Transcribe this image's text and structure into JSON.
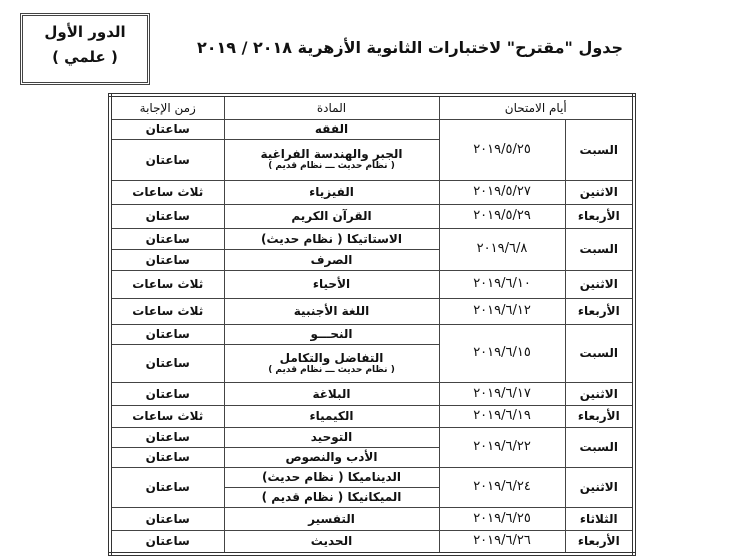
{
  "round_box": {
    "line1": "الدور الأول",
    "line2": "( علمي )"
  },
  "title": "جدول \"مقترح\" لاختبارات الثانوية الأزهرية ٢٠١٨ / ٢٠١٩",
  "table": {
    "headers": {
      "days": "أيام الامتحان",
      "subject": "المادة",
      "duration": "زمن الإجابة"
    },
    "rows": [
      {
        "day": "السبت",
        "date": "٢٠١٩/٥/٢٥",
        "sessions": [
          {
            "subject": "الفقه",
            "duration": "ساعتان"
          },
          {
            "subject": "الجبر والهندسة الفراغية",
            "note": "( نظام حديث ـــ نظام قديم )",
            "duration": "ساعتان"
          }
        ]
      },
      {
        "day": "الاثنين",
        "date": "٢٠١٩/٥/٢٧",
        "sessions": [
          {
            "subject": "الفيزياء",
            "duration": "ثلاث ساعات"
          }
        ]
      },
      {
        "day": "الأربعاء",
        "date": "٢٠١٩/٥/٢٩",
        "sessions": [
          {
            "subject": "القرآن الكريم",
            "duration": "ساعتان"
          }
        ]
      },
      {
        "day": "السبت",
        "date": "٢٠١٩/٦/٨",
        "sessions": [
          {
            "subject": "الاستاتيكا ( نظام حديث)",
            "duration": "ساعتان"
          },
          {
            "subject": "الصرف",
            "duration": "ساعتان"
          }
        ]
      },
      {
        "day": "الاثنين",
        "date": "٢٠١٩/٦/١٠",
        "sessions": [
          {
            "subject": "الأحياء",
            "duration": "ثلاث ساعات"
          }
        ]
      },
      {
        "day": "الأربعاء",
        "date": "٢٠١٩/٦/١٢",
        "sessions": [
          {
            "subject": "اللغة الأجنبية",
            "duration": "ثلاث ساعات"
          }
        ]
      },
      {
        "day": "السبت",
        "date": "٢٠١٩/٦/١٥",
        "sessions": [
          {
            "subject": "النحـــو",
            "duration": "ساعتان"
          },
          {
            "subject": "التفاضل والتكامل",
            "note": "( نظام حديث ـــ نظام قديم )",
            "duration": "ساعتان"
          }
        ]
      },
      {
        "day": "الاثنين",
        "date": "٢٠١٩/٦/١٧",
        "sessions": [
          {
            "subject": "البلاغة",
            "duration": "ساعتان"
          }
        ]
      },
      {
        "day": "الأربعاء",
        "date": "٢٠١٩/٦/١٩",
        "sessions": [
          {
            "subject": "الكيمياء",
            "duration": "ثلاث ساعات"
          }
        ]
      },
      {
        "day": "السبت",
        "date": "٢٠١٩/٦/٢٢",
        "sessions": [
          {
            "subject": "التوحيد",
            "duration": "ساعتان"
          },
          {
            "subject": "الأدب والنصوص",
            "duration": "ساعتان"
          }
        ]
      },
      {
        "day": "الاثنين",
        "date": "٢٠١٩/٦/٢٤",
        "shared_duration": "ساعتان",
        "sessions": [
          {
            "subject": "الديناميكا ( نظام حديث)"
          },
          {
            "subject": "الميكانيكا ( نظام قديم )"
          }
        ]
      },
      {
        "day": "الثلاثاء",
        "date": "٢٠١٩/٦/٢٥",
        "sessions": [
          {
            "subject": "التفسير",
            "duration": "ساعتان"
          }
        ]
      },
      {
        "day": "الأربعاء",
        "date": "٢٠١٩/٦/٢٦",
        "sessions": [
          {
            "subject": "الحديث",
            "duration": "ساعتان"
          }
        ]
      }
    ]
  }
}
